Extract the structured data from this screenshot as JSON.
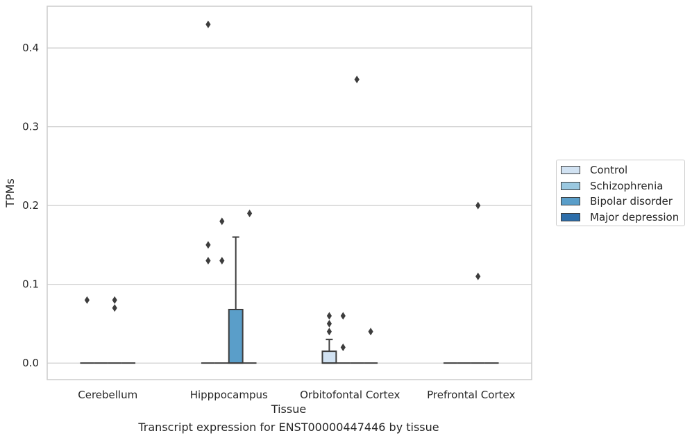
{
  "chart_data": {
    "type": "box",
    "xlabel": "Tissue",
    "ylabel": "TPMs",
    "caption": "Transcript expression for ENST00000447446 by tissue",
    "ylim": [
      -0.021,
      0.453
    ],
    "yticks": [
      "0.0",
      "0.1",
      "0.2",
      "0.3",
      "0.4"
    ],
    "grid": "horizontal",
    "legend_position": "right-outside",
    "categories": [
      "Cerebellum",
      "Hipppocampus",
      "Orbitofontal Cortex",
      "Prefrontal Cortex"
    ],
    "series": [
      {
        "name": "Control",
        "color": "#d1e2f2",
        "boxes": [
          {
            "category": "Cerebellum",
            "q1": 0,
            "median": 0,
            "q3": 0,
            "whisker_low": 0,
            "whisker_high": 0,
            "outliers": [
              0.08
            ]
          },
          {
            "category": "Hipppocampus",
            "q1": 0,
            "median": 0,
            "q3": 0,
            "whisker_low": 0,
            "whisker_high": 0,
            "outliers": [
              0.13,
              0.15,
              0.43
            ]
          },
          {
            "category": "Orbitofontal Cortex",
            "q1": 0,
            "median": 0,
            "q3": 0.015,
            "whisker_low": 0,
            "whisker_high": 0.03,
            "outliers": [
              0.04,
              0.05,
              0.06
            ]
          },
          {
            "category": "Prefrontal Cortex",
            "q1": 0,
            "median": 0,
            "q3": 0,
            "whisker_low": 0,
            "whisker_high": 0,
            "outliers": []
          }
        ]
      },
      {
        "name": "Schizophrenia",
        "color": "#9ac8e0",
        "boxes": [
          {
            "category": "Cerebellum",
            "q1": 0,
            "median": 0,
            "q3": 0,
            "whisker_low": 0,
            "whisker_high": 0,
            "outliers": []
          },
          {
            "category": "Hipppocampus",
            "q1": 0,
            "median": 0,
            "q3": 0,
            "whisker_low": 0,
            "whisker_high": 0,
            "outliers": [
              0.13,
              0.18
            ]
          },
          {
            "category": "Orbitofontal Cortex",
            "q1": 0,
            "median": 0,
            "q3": 0,
            "whisker_low": 0,
            "whisker_high": 0,
            "outliers": [
              0.02,
              0.06
            ]
          },
          {
            "category": "Prefrontal Cortex",
            "q1": 0,
            "median": 0,
            "q3": 0,
            "whisker_low": 0,
            "whisker_high": 0,
            "outliers": []
          }
        ]
      },
      {
        "name": "Bipolar disorder",
        "color": "#5a9ec9",
        "boxes": [
          {
            "category": "Cerebellum",
            "q1": 0,
            "median": 0,
            "q3": 0,
            "whisker_low": 0,
            "whisker_high": 0,
            "outliers": [
              0.07,
              0.08
            ]
          },
          {
            "category": "Hipppocampus",
            "q1": 0,
            "median": 0,
            "q3": 0.068,
            "whisker_low": 0,
            "whisker_high": 0.16,
            "outliers": []
          },
          {
            "category": "Orbitofontal Cortex",
            "q1": 0,
            "median": 0,
            "q3": 0,
            "whisker_low": 0,
            "whisker_high": 0,
            "outliers": [
              0.36
            ]
          },
          {
            "category": "Prefrontal Cortex",
            "q1": 0,
            "median": 0,
            "q3": 0,
            "whisker_low": 0,
            "whisker_high": 0,
            "outliers": [
              0.11,
              0.2
            ]
          }
        ]
      },
      {
        "name": "Major depression",
        "color": "#2d6eaa",
        "boxes": [
          {
            "category": "Cerebellum",
            "q1": 0,
            "median": 0,
            "q3": 0,
            "whisker_low": 0,
            "whisker_high": 0,
            "outliers": []
          },
          {
            "category": "Hipppocampus",
            "q1": 0,
            "median": 0,
            "q3": 0,
            "whisker_low": 0,
            "whisker_high": 0,
            "outliers": [
              0.19
            ]
          },
          {
            "category": "Orbitofontal Cortex",
            "q1": 0,
            "median": 0,
            "q3": 0,
            "whisker_low": 0,
            "whisker_high": 0,
            "outliers": [
              0.04
            ]
          },
          {
            "category": "Prefrontal Cortex",
            "q1": 0,
            "median": 0,
            "q3": 0,
            "whisker_low": 0,
            "whisker_high": 0,
            "outliers": []
          }
        ]
      }
    ]
  }
}
